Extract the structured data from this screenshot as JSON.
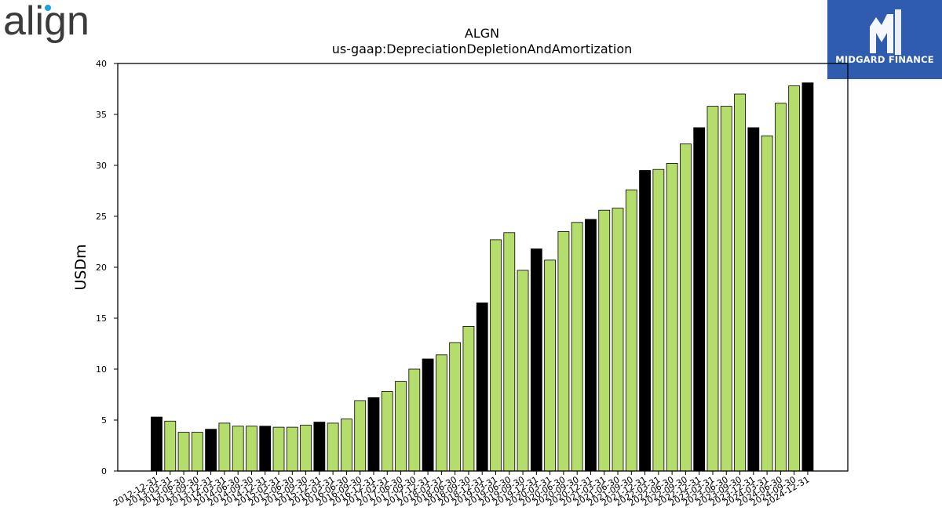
{
  "logos": {
    "left_text": "align",
    "right_text": "MIDGARD FINANCE",
    "right_bg": "#2f5caf"
  },
  "colors": {
    "bar_quarter": "#b5dd6b",
    "bar_year_end": "#000000",
    "bar_edge": "#000000"
  },
  "chart_data": {
    "type": "bar",
    "title": "ALGN",
    "subtitle": "us-gaap:DepreciationDepletionAndAmortization",
    "xlabel": "",
    "ylabel": "USDm",
    "ylim": [
      0,
      40
    ],
    "yticks": [
      0,
      5,
      10,
      15,
      20,
      25,
      30,
      35,
      40
    ],
    "grid": false,
    "categories": [
      "2012-12-31",
      "2013-03-31",
      "2013-06-30",
      "2013-09-30",
      "2013-12-31",
      "2014-03-31",
      "2014-06-30",
      "2014-09-30",
      "2014-12-31",
      "2015-03-31",
      "2015-06-30",
      "2015-09-30",
      "2015-12-31",
      "2016-03-31",
      "2016-06-30",
      "2016-09-30",
      "2016-12-31",
      "2017-03-31",
      "2017-06-30",
      "2017-09-30",
      "2017-12-31",
      "2018-03-31",
      "2018-06-30",
      "2018-09-30",
      "2018-12-31",
      "2019-03-31",
      "2019-06-30",
      "2019-09-30",
      "2019-12-31",
      "2020-03-31",
      "2020-06-30",
      "2020-09-30",
      "2020-12-31",
      "2021-03-31",
      "2021-06-30",
      "2021-09-30",
      "2021-12-31",
      "2022-03-31",
      "2022-06-30",
      "2022-09-30",
      "2022-12-31",
      "2023-03-31",
      "2023-06-30",
      "2023-09-30",
      "2023-12-31",
      "2024-03-31",
      "2024-06-30",
      "2024-09-30",
      "2024-12-31"
    ],
    "values": [
      5.3,
      4.9,
      3.8,
      3.8,
      4.1,
      4.7,
      4.4,
      4.4,
      4.4,
      4.3,
      4.3,
      4.5,
      4.8,
      4.7,
      5.1,
      6.9,
      7.2,
      7.8,
      8.8,
      10.0,
      11.0,
      11.4,
      12.6,
      14.2,
      16.5,
      22.7,
      23.4,
      19.7,
      21.8,
      20.7,
      23.5,
      24.4,
      24.7,
      25.6,
      25.8,
      27.6,
      29.5,
      29.6,
      30.2,
      32.1,
      33.7,
      35.8,
      35.8,
      37.0,
      33.7,
      32.9,
      36.1,
      37.8,
      38.1
    ]
  }
}
